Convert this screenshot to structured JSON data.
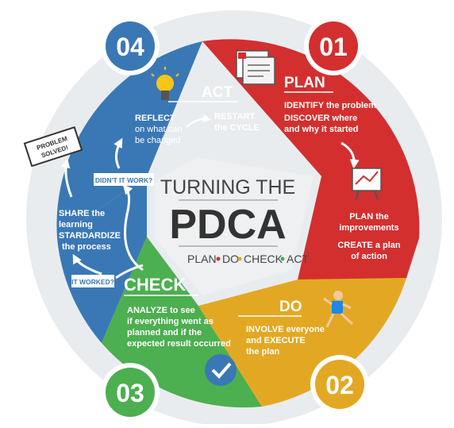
{
  "center": {
    "line1": "TURNING THE",
    "line2": "PDCA",
    "sub": [
      "PLAN",
      "DO",
      "CHECK",
      "ACT"
    ]
  },
  "steps": {
    "plan": {
      "number": "01",
      "title": "PLAN",
      "lines": [
        "IDENTIFY the problem",
        "DISCOVER where",
        "and why it started"
      ],
      "lines2": [
        "PLAN the",
        "improvements",
        "CREATE a plan",
        "of action"
      ],
      "color": "#d32f2f"
    },
    "do": {
      "number": "02",
      "title": "DO",
      "lines": [
        "INVOLVE everyone",
        "and EXECUTE",
        "the plan"
      ],
      "color": "#e3a823"
    },
    "check": {
      "number": "03",
      "title": "CHECK",
      "lines": [
        "ANALYZE to see",
        "if everything went as",
        "planned and if the",
        "expected result occurred"
      ],
      "color": "#4caf50"
    },
    "act": {
      "number": "04",
      "title": "ACT",
      "reflect": [
        "REFLECT",
        "on what can",
        "be changed"
      ],
      "restart": [
        "RESTART",
        "the CYCLE"
      ],
      "share": [
        "SHARE the",
        "learning",
        "STARDARDIZE",
        "the process"
      ],
      "didnt_work": "DIDN'T IT WORK?",
      "worked": "IT WORKED?",
      "solved": [
        "PROBLEM",
        "SOLVED!"
      ],
      "color": "#3a78b5"
    }
  },
  "icons": [
    "lightbulb-icon",
    "documents-icon",
    "chart-board-icon",
    "runner-icon",
    "checkmark-icon"
  ]
}
